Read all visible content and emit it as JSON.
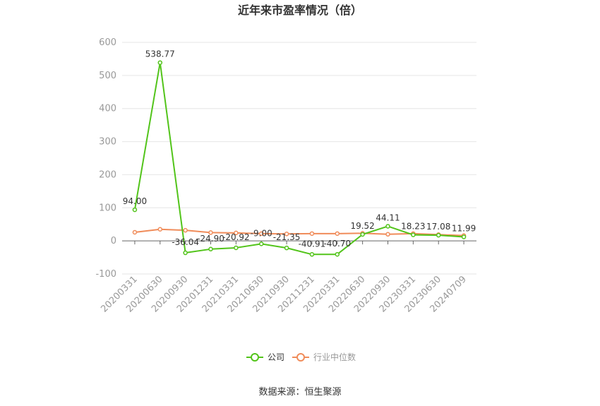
{
  "chart_data": {
    "type": "line",
    "title": "近年来市盈率情况（倍）",
    "categories": [
      "20200331",
      "20200630",
      "20200930",
      "20201231",
      "20210331",
      "20210630",
      "20210930",
      "20211231",
      "20220331",
      "20220630",
      "20220930",
      "20230331",
      "20230630",
      "20240709"
    ],
    "series": [
      {
        "name": "公司",
        "color": "#52c41a",
        "values": [
          94.0,
          538.77,
          -36.04,
          -24.9,
          -20.92,
          -9.0,
          -21.35,
          -40.91,
          -40.7,
          19.52,
          44.11,
          18.23,
          17.08,
          11.99
        ],
        "labels": [
          "94.00",
          "538.77",
          "-36.04",
          "-24.90",
          "-20.92",
          "-9.00",
          "-21.35",
          "-40.91",
          "-40.70",
          "19.52",
          "44.11",
          "18.23",
          "17.08",
          "11.99"
        ]
      },
      {
        "name": "行业中位数",
        "color": "#f08c5a",
        "values": [
          26,
          35,
          32,
          25,
          24,
          22,
          21,
          22,
          22,
          23,
          20,
          22,
          19,
          16
        ]
      }
    ],
    "ylim": [
      -100,
      600
    ],
    "yticks": [
      -100,
      0,
      100,
      200,
      300,
      400,
      500,
      600
    ],
    "grid": true,
    "legend": "bottom-center"
  },
  "source": "数据来源：恒生聚源"
}
